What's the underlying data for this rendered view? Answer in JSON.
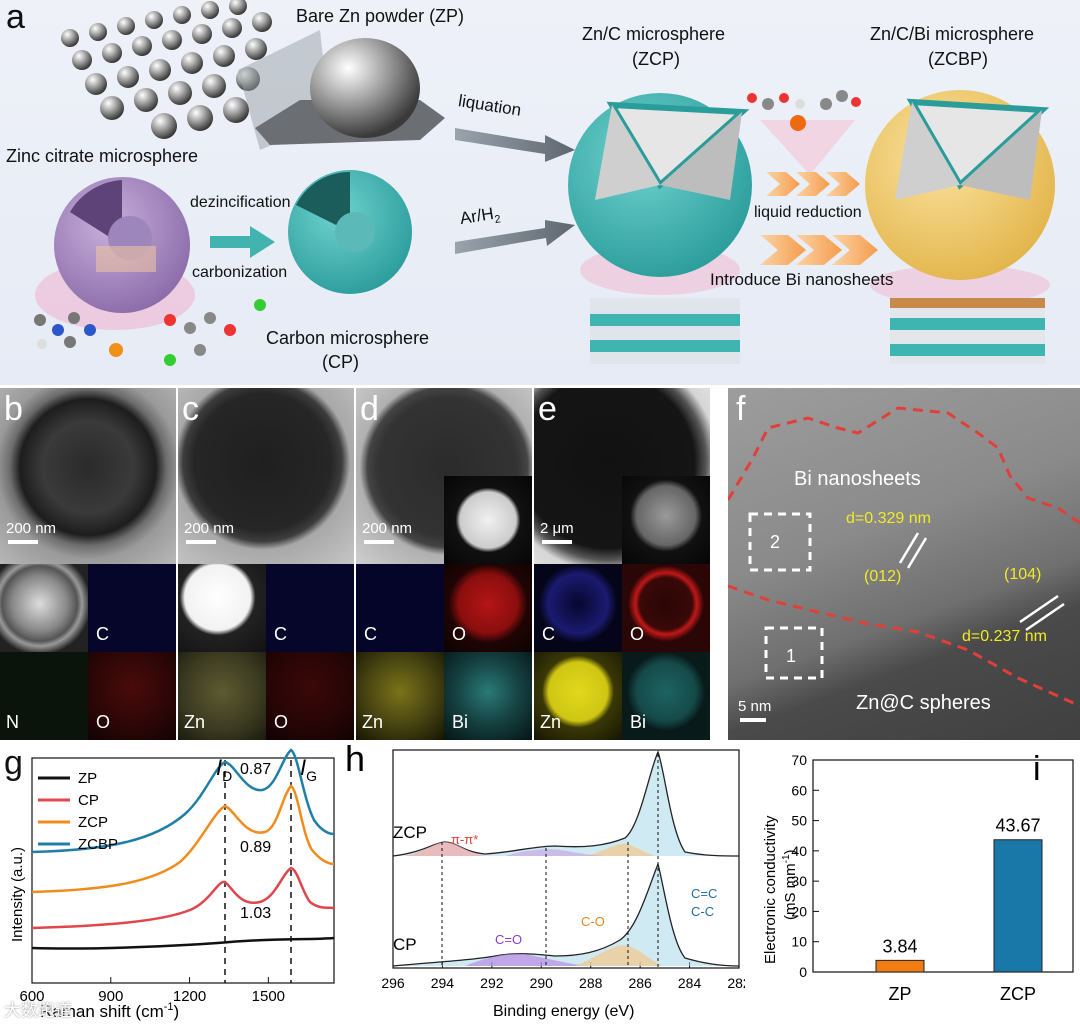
{
  "panels": {
    "a": "a",
    "b": "b",
    "c": "c",
    "d": "d",
    "e": "e",
    "f": "f",
    "g": "g",
    "h": "h",
    "i": "i"
  },
  "schematic": {
    "zp_title": "Bare Zn powder (ZP)",
    "zcp_title_1": "Zn/C microsphere",
    "zcp_title_2": "(ZCP)",
    "zcbp_title_1": "Zn/C/Bi microsphere",
    "zcbp_title_2": "(ZCBP)",
    "zinc_citrate": "Zinc citrate microsphere",
    "dezincification": "dezincification",
    "carbonization": "carbonization",
    "cp_title_1": "Carbon microsphere",
    "cp_title_2": "(CP)",
    "liquation": "liquation",
    "ar_h2": "Ar/H",
    "ar_h2_sub": "2",
    "liquid_reduction": "liquid reduction",
    "introduce_bi": "Introduce Bi nanosheets"
  },
  "em": {
    "b": {
      "scale": "200 nm",
      "maps": [
        "C",
        "N",
        "O"
      ]
    },
    "c": {
      "scale": "200 nm",
      "maps": [
        "C",
        "Zn",
        "O"
      ]
    },
    "d": {
      "scale": "200 nm",
      "maps": [
        "C",
        "O",
        "Zn",
        "Bi"
      ]
    },
    "e": {
      "scale": "2 μm",
      "maps": [
        "C",
        "O",
        "Zn",
        "Bi"
      ]
    }
  },
  "hrtem": {
    "bi_nanosheets": "Bi nanosheets",
    "zn_spheres": "Zn@C spheres",
    "d1": "d=0.329 nm",
    "d2": "d=0.237 nm",
    "plane1": "(012)",
    "plane2": "(104)",
    "box1": "1",
    "box2": "2",
    "scale": "5 nm"
  },
  "chart_data": [
    {
      "type": "line",
      "panel": "g",
      "xlabel": "Raman shift (cm",
      "xlabel_sup": "-1",
      "xlabel_end": ")",
      "ylabel": "Intensity (a.u.)",
      "xlim": [
        600,
        1750
      ],
      "xticks": [
        "600",
        "900",
        "1200",
        "1500"
      ],
      "peak_labels": {
        "D": "I",
        "D_sub": "D",
        "G": "I",
        "G_sub": "G"
      },
      "ratios": [
        "0.87",
        "0.89",
        "1.03"
      ],
      "series": [
        {
          "name": "ZP",
          "color": "#111111"
        },
        {
          "name": "CP",
          "color": "#e0474c"
        },
        {
          "name": "ZCP",
          "color": "#f08c1c"
        },
        {
          "name": "ZCBP",
          "color": "#1f7fa6"
        }
      ]
    },
    {
      "type": "line",
      "panel": "h",
      "xlabel": "Binding energy (eV)",
      "xlim": [
        296,
        282
      ],
      "xticks": [
        "296",
        "294",
        "292",
        "290",
        "288",
        "286",
        "284",
        "282"
      ],
      "series_labels": [
        "ZCP",
        "CP"
      ],
      "peak_annotations": [
        "π-π*",
        "C=O",
        "C-O",
        "C=C",
        "C-C"
      ]
    },
    {
      "type": "bar",
      "panel": "i",
      "categories": [
        "ZP",
        "ZCP"
      ],
      "values": [
        3.84,
        43.67
      ],
      "value_labels": [
        "3.84",
        "43.67"
      ],
      "colors": [
        "#f07c12",
        "#1a78a8"
      ],
      "ylabel_1": "Electronic conductivity",
      "ylabel_2": "(mS mm",
      "ylabel_sup": "-1",
      "ylabel_end": ")",
      "ylim": [
        0,
        70
      ],
      "yticks": [
        "0",
        "10",
        "20",
        "30",
        "40",
        "50",
        "60",
        "70"
      ]
    }
  ],
  "watermark": "大数跑道"
}
